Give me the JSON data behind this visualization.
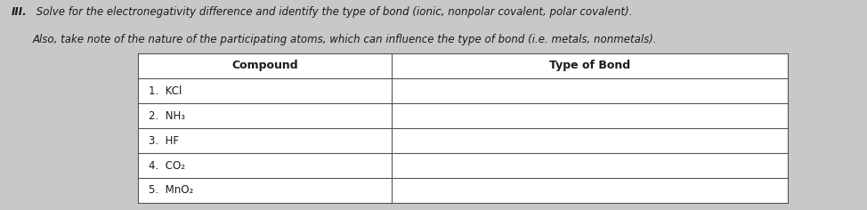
{
  "title_roman": "III.",
  "title_line1": " Solve for the electronegativity difference and identify the type of bond (ionic, nonpolar covalent, polar covalent).",
  "title_line2": "Also, take note of the nature of the participating atoms, which can influence the type of bond (i.e. metals, nonmetals).",
  "col_headers": [
    "Compound",
    "Type of Bond"
  ],
  "rows": [
    [
      "1.  KCl",
      ""
    ],
    [
      "2.  NH₃",
      ""
    ],
    [
      "3.  HF",
      ""
    ],
    [
      "4.  CO₂",
      ""
    ],
    [
      "5.  MnO₂",
      ""
    ]
  ],
  "bg_color": "#c8c8c8",
  "text_color": "#1a1a1a",
  "border_color": "#555555",
  "fig_width": 9.74,
  "fig_height": 2.36,
  "dpi": 100
}
